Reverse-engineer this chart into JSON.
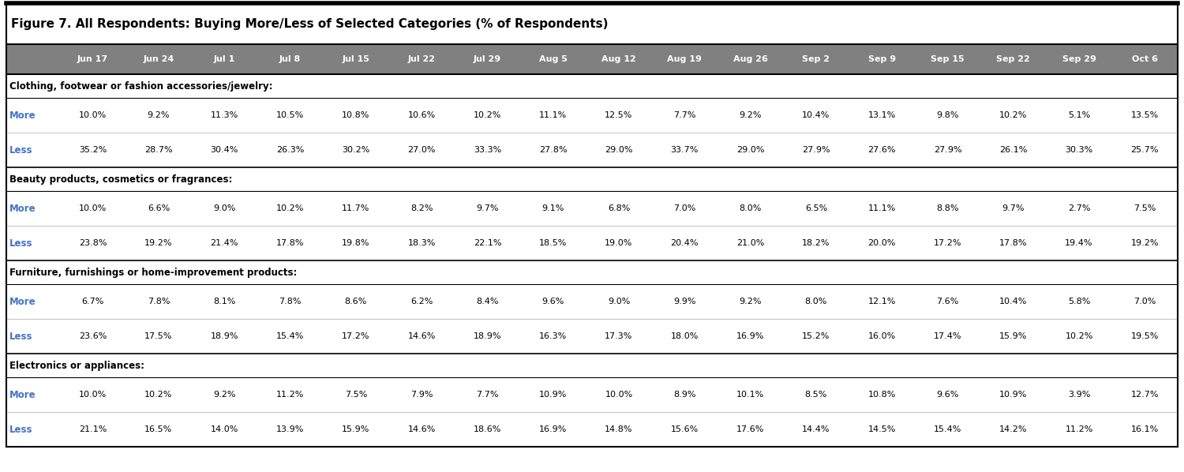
{
  "title": "Figure 7. All Respondents: Buying More/Less of Selected Categories (% of Respondents)",
  "columns": [
    "",
    "Jun 17",
    "Jun 24",
    "Jul 1",
    "Jul 8",
    "Jul 15",
    "Jul 22",
    "Jul 29",
    "Aug 5",
    "Aug 12",
    "Aug 19",
    "Aug 26",
    "Sep 2",
    "Sep 9",
    "Sep 15",
    "Sep 22",
    "Sep 29",
    "Oct 6"
  ],
  "header_bg": "#808080",
  "section_headers": [
    "Clothing, footwear or fashion accessories/jewelry:",
    "Beauty products, cosmetics or fragrances:",
    "Furniture, furnishings or home-improvement products:",
    "Electronics or appliances:"
  ],
  "rows": [
    {
      "label": "More",
      "values": [
        "10.0%",
        "9.2%",
        "11.3%",
        "10.5%",
        "10.8%",
        "10.6%",
        "10.2%",
        "11.1%",
        "12.5%",
        "7.7%",
        "9.2%",
        "10.4%",
        "13.1%",
        "9.8%",
        "10.2%",
        "5.1%",
        "13.5%"
      ]
    },
    {
      "label": "Less",
      "values": [
        "35.2%",
        "28.7%",
        "30.4%",
        "26.3%",
        "30.2%",
        "27.0%",
        "33.3%",
        "27.8%",
        "29.0%",
        "33.7%",
        "29.0%",
        "27.9%",
        "27.6%",
        "27.9%",
        "26.1%",
        "30.3%",
        "25.7%"
      ]
    },
    {
      "label": "More",
      "values": [
        "10.0%",
        "6.6%",
        "9.0%",
        "10.2%",
        "11.7%",
        "8.2%",
        "9.7%",
        "9.1%",
        "6.8%",
        "7.0%",
        "8.0%",
        "6.5%",
        "11.1%",
        "8.8%",
        "9.7%",
        "2.7%",
        "7.5%"
      ]
    },
    {
      "label": "Less",
      "values": [
        "23.8%",
        "19.2%",
        "21.4%",
        "17.8%",
        "19.8%",
        "18.3%",
        "22.1%",
        "18.5%",
        "19.0%",
        "20.4%",
        "21.0%",
        "18.2%",
        "20.0%",
        "17.2%",
        "17.8%",
        "19.4%",
        "19.2%"
      ]
    },
    {
      "label": "More",
      "values": [
        "6.7%",
        "7.8%",
        "8.1%",
        "7.8%",
        "8.6%",
        "6.2%",
        "8.4%",
        "9.6%",
        "9.0%",
        "9.9%",
        "9.2%",
        "8.0%",
        "12.1%",
        "7.6%",
        "10.4%",
        "5.8%",
        "7.0%"
      ]
    },
    {
      "label": "Less",
      "values": [
        "23.6%",
        "17.5%",
        "18.9%",
        "15.4%",
        "17.2%",
        "14.6%",
        "18.9%",
        "16.3%",
        "17.3%",
        "18.0%",
        "16.9%",
        "15.2%",
        "16.0%",
        "17.4%",
        "15.9%",
        "10.2%",
        "19.5%"
      ]
    },
    {
      "label": "More",
      "values": [
        "10.0%",
        "10.2%",
        "9.2%",
        "11.2%",
        "7.5%",
        "7.9%",
        "7.7%",
        "10.9%",
        "10.0%",
        "8.9%",
        "10.1%",
        "8.5%",
        "10.8%",
        "9.6%",
        "10.9%",
        "3.9%",
        "12.7%"
      ]
    },
    {
      "label": "Less",
      "values": [
        "21.1%",
        "16.5%",
        "14.0%",
        "13.9%",
        "15.9%",
        "14.6%",
        "18.6%",
        "16.9%",
        "14.8%",
        "15.6%",
        "17.6%",
        "14.4%",
        "14.5%",
        "15.4%",
        "14.2%",
        "11.2%",
        "16.1%"
      ]
    }
  ],
  "label_color": "#4472C4",
  "text_color": "#000000",
  "bg_color": "#ffffff",
  "title_fontsize": 11,
  "header_fontsize": 8,
  "cell_fontsize": 8,
  "section_fontsize": 8.5,
  "label_fontsize": 8.5
}
